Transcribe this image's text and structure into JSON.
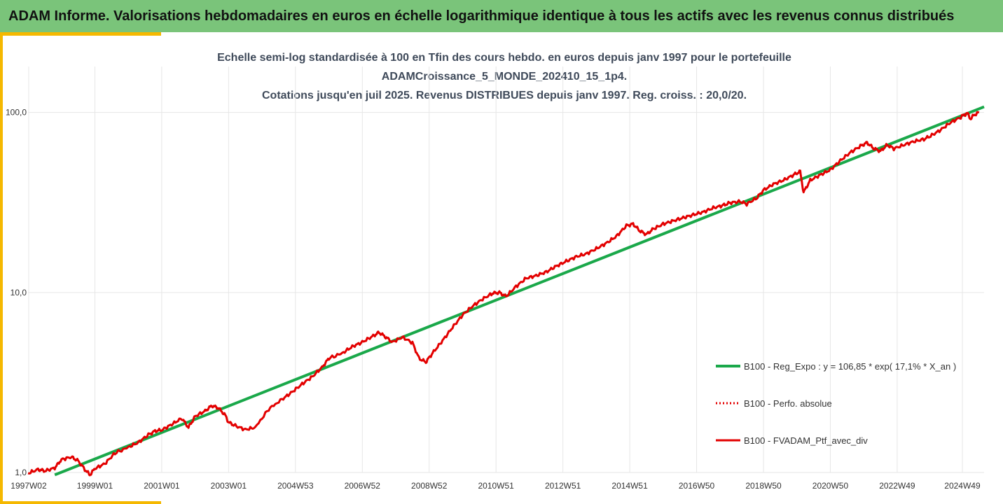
{
  "header": {
    "title": "ADAM Informe. Valorisations hebdomadaires en euros en échelle logarithmique identique à tous les actifs avec les revenus connus distribués"
  },
  "colors": {
    "header_bg": "#7ac47a",
    "accent": "#f5b800",
    "regression": "#1aa84a",
    "portfolio": "#e30000"
  },
  "chart_data": {
    "type": "line",
    "title_lines": [
      "Echelle semi-log standardisée à 100 en Tfin des cours hebdo.  en euros depuis janv 1997 pour le portefeuille",
      "ADAMCroissance_5_MONDE_202410_15_1p4.",
      "Cotations  jusqu'en juil 2025. Revenus DISTRIBUES depuis janv 1997. Reg. croiss. : 20,0/20."
    ],
    "y_scale": "log",
    "ylim": [
      1,
      110
    ],
    "xlim": [
      1997.0,
      2025.6
    ],
    "y_ticks": [
      {
        "value": 1,
        "label": "1,0"
      },
      {
        "value": 10,
        "label": "10,0"
      },
      {
        "value": 100,
        "label": "100,0"
      }
    ],
    "x_ticks": [
      {
        "value": 1997.02,
        "label": "1997W02"
      },
      {
        "value": 1999.0,
        "label": "1999W01"
      },
      {
        "value": 2001.0,
        "label": "2001W01"
      },
      {
        "value": 2003.0,
        "label": "2003W01"
      },
      {
        "value": 2005.0,
        "label": "2004W53"
      },
      {
        "value": 2007.0,
        "label": "2006W52"
      },
      {
        "value": 2009.0,
        "label": "2008W52"
      },
      {
        "value": 2011.0,
        "label": "2010W51"
      },
      {
        "value": 2013.0,
        "label": "2012W51"
      },
      {
        "value": 2015.0,
        "label": "2014W51"
      },
      {
        "value": 2017.0,
        "label": "2016W50"
      },
      {
        "value": 2019.0,
        "label": "2018W50"
      },
      {
        "value": 2021.0,
        "label": "2020W50"
      },
      {
        "value": 2023.0,
        "label": "2022W49"
      },
      {
        "value": 2024.95,
        "label": "2024W49"
      }
    ],
    "grid": {
      "horizontal": true,
      "vertical": true
    },
    "legend_position": "right",
    "series": [
      {
        "name": "B100 - Reg_Expo : y = 106,85 * exp( 17,1% *  X_an )",
        "style": "solid",
        "color": "#1aa84a",
        "x": [
          1997.8,
          2025.6
        ],
        "y": [
          0.97,
          107.5
        ]
      },
      {
        "name": "B100 - Perfo. absolue",
        "style": "dotted",
        "color": "#e30000",
        "x": [],
        "y": []
      },
      {
        "name": "B100 - FVADAM_Ptf_avec_div",
        "style": "solid",
        "color": "#e30000",
        "x": [
          1997.0,
          1997.3,
          1997.5,
          1997.8,
          1998.0,
          1998.3,
          1998.5,
          1998.7,
          1998.85,
          1999.0,
          1999.3,
          1999.6,
          2000.0,
          2000.3,
          2000.6,
          2000.8,
          2001.0,
          2001.3,
          2001.6,
          2001.8,
          2002.0,
          2002.3,
          2002.5,
          2002.7,
          2002.9,
          2003.0,
          2003.2,
          2003.5,
          2003.8,
          2004.2,
          2004.6,
          2004.9,
          2005.2,
          2005.5,
          2005.8,
          2006.0,
          2006.4,
          2006.7,
          2007.0,
          2007.3,
          2007.5,
          2007.7,
          2007.9,
          2008.2,
          2008.5,
          2008.7,
          2008.9,
          2009.1,
          2009.4,
          2009.7,
          2010.0,
          2010.3,
          2010.6,
          2010.9,
          2011.1,
          2011.3,
          2011.6,
          2011.9,
          2012.2,
          2012.5,
          2012.8,
          2013.1,
          2013.4,
          2013.7,
          2014.0,
          2014.3,
          2014.6,
          2014.9,
          2015.1,
          2015.3,
          2015.5,
          2015.7,
          2016.0,
          2016.3,
          2016.6,
          2016.9,
          2017.2,
          2017.5,
          2017.8,
          2018.0,
          2018.3,
          2018.5,
          2018.8,
          2019.0,
          2019.3,
          2019.6,
          2019.9,
          2020.1,
          2020.2,
          2020.4,
          2020.7,
          2021.0,
          2021.3,
          2021.6,
          2021.9,
          2022.1,
          2022.3,
          2022.5,
          2022.7,
          2022.9,
          2023.2,
          2023.5,
          2023.8,
          2024.0,
          2024.3,
          2024.6,
          2024.9,
          2025.0,
          2025.1,
          2025.2,
          2025.3,
          2025.45
        ],
        "y": [
          0.99,
          1.04,
          1.02,
          1.06,
          1.18,
          1.22,
          1.16,
          1.04,
          0.97,
          1.05,
          1.12,
          1.28,
          1.38,
          1.47,
          1.62,
          1.7,
          1.72,
          1.85,
          2.0,
          1.78,
          2.05,
          2.2,
          2.35,
          2.28,
          2.08,
          1.9,
          1.82,
          1.73,
          1.78,
          2.25,
          2.55,
          2.8,
          3.1,
          3.4,
          3.85,
          4.3,
          4.6,
          5.0,
          5.3,
          5.7,
          6.0,
          5.65,
          5.3,
          5.65,
          5.25,
          4.3,
          4.1,
          4.6,
          5.4,
          6.4,
          7.5,
          8.4,
          9.2,
          9.9,
          10.0,
          9.5,
          10.8,
          12.0,
          12.4,
          13.0,
          14.0,
          14.9,
          15.8,
          16.4,
          17.5,
          18.8,
          20.5,
          23.5,
          24.0,
          22.0,
          21.0,
          22.5,
          24.0,
          25.0,
          26.0,
          27.0,
          28.0,
          29.5,
          30.5,
          31.5,
          32.0,
          31.0,
          33.5,
          37.0,
          40.0,
          42.0,
          45.0,
          47.0,
          36.0,
          42.0,
          45.0,
          48.0,
          54.0,
          60.0,
          65.0,
          68.0,
          63.0,
          61.0,
          66.0,
          63.0,
          66.0,
          69.0,
          71.0,
          74.0,
          80.0,
          88.0,
          94.0,
          97.0,
          99.0,
          92.0,
          97.0,
          100.0
        ]
      }
    ]
  }
}
